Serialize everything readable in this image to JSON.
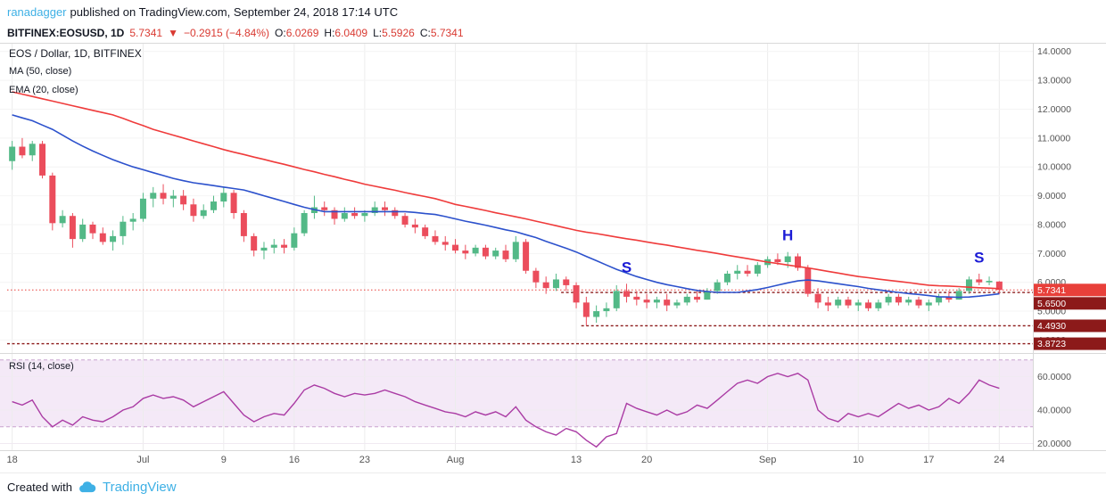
{
  "attribution": {
    "username": "ranadagger",
    "text": "published on TradingView.com, September 24, 2018 17:14 UTC"
  },
  "symbol_bar": {
    "symbol": "BITFINEX:EOSUSD, 1D",
    "last": "5.7341",
    "arrow": "▼",
    "change": "−0.2915 (−4.84%)",
    "o_label": "O:",
    "o": "6.0269",
    "h_label": "H:",
    "h": "6.0409",
    "l_label": "L:",
    "l": "5.5926",
    "c_label": "C:",
    "c": "5.7341"
  },
  "legend": {
    "title": "EOS / Dollar, 1D, BITFINEX",
    "ma_label": "MA (50, close)",
    "ema_label": "EMA (20, close)"
  },
  "rsi_title": "RSI (14, close)",
  "footer": {
    "created_with": "Created with",
    "brand": "TradingView"
  },
  "colors": {
    "link_blue": "#3eb0e5",
    "value_red": "#d93a32",
    "up": "#53b987",
    "down": "#eb4d5c",
    "ma50": "#ef3b3b",
    "ema20": "#2c51cc",
    "rsi": "#aa3ba4",
    "marker_blue": "#1b1bd6",
    "alert_dark_red": "#8c1a1a",
    "last_price_red": "#e8403a"
  },
  "chart_data": [
    {
      "type": "candlestick",
      "pane": "price",
      "title": "EOS / Dollar, 1D, BITFINEX",
      "up_color": "#53b987",
      "down_color": "#eb4d5c",
      "marker_color": "#1b1bd6",
      "ylim": [
        3.55,
        14.3
      ],
      "y_ticks": [
        14,
        13,
        12,
        11,
        10,
        9,
        8,
        7,
        6,
        5,
        4
      ],
      "x_ticks": [
        {
          "i": 0,
          "label": "18"
        },
        {
          "i": 13,
          "label": "Jul"
        },
        {
          "i": 21,
          "label": "9"
        },
        {
          "i": 28,
          "label": "16"
        },
        {
          "i": 35,
          "label": "23"
        },
        {
          "i": 44,
          "label": "Aug"
        },
        {
          "i": 56,
          "label": "13"
        },
        {
          "i": 63,
          "label": "20"
        },
        {
          "i": 75,
          "label": "Sep"
        },
        {
          "i": 84,
          "label": "10"
        },
        {
          "i": 91,
          "label": "17"
        },
        {
          "i": 98,
          "label": "24"
        }
      ],
      "candles": [
        [
          10.2,
          10.9,
          9.9,
          10.7
        ],
        [
          10.7,
          11.0,
          10.3,
          10.4
        ],
        [
          10.4,
          10.9,
          10.2,
          10.8
        ],
        [
          10.8,
          10.9,
          9.6,
          9.7
        ],
        [
          9.7,
          9.8,
          7.8,
          8.05
        ],
        [
          8.05,
          8.5,
          7.9,
          8.3
        ],
        [
          8.3,
          8.4,
          7.2,
          7.5
        ],
        [
          7.5,
          8.2,
          7.4,
          8.0
        ],
        [
          8.0,
          8.1,
          7.5,
          7.7
        ],
        [
          7.7,
          7.9,
          7.3,
          7.4
        ],
        [
          7.4,
          7.8,
          7.1,
          7.6
        ],
        [
          7.6,
          8.3,
          7.3,
          8.1
        ],
        [
          8.1,
          8.4,
          7.8,
          8.2
        ],
        [
          8.2,
          9.1,
          8.1,
          8.9
        ],
        [
          8.9,
          9.3,
          8.6,
          9.1
        ],
        [
          9.1,
          9.4,
          8.7,
          8.9
        ],
        [
          8.9,
          9.2,
          8.6,
          9.0
        ],
        [
          9.0,
          9.2,
          8.5,
          8.7
        ],
        [
          8.7,
          8.9,
          8.1,
          8.3
        ],
        [
          8.3,
          8.7,
          8.2,
          8.5
        ],
        [
          8.5,
          9.0,
          8.4,
          8.8
        ],
        [
          8.8,
          9.3,
          8.6,
          9.1
        ],
        [
          9.1,
          9.2,
          8.2,
          8.4
        ],
        [
          8.4,
          8.5,
          7.4,
          7.6
        ],
        [
          7.6,
          7.7,
          6.9,
          7.1
        ],
        [
          7.1,
          7.4,
          6.8,
          7.2
        ],
        [
          7.2,
          7.5,
          7.0,
          7.3
        ],
        [
          7.3,
          7.5,
          7.0,
          7.2
        ],
        [
          7.2,
          7.9,
          7.1,
          7.7
        ],
        [
          7.7,
          8.5,
          7.6,
          8.4
        ],
        [
          8.4,
          9.0,
          8.2,
          8.6
        ],
        [
          8.6,
          8.8,
          8.3,
          8.5
        ],
        [
          8.5,
          8.6,
          8.0,
          8.2
        ],
        [
          8.2,
          8.6,
          8.1,
          8.4
        ],
        [
          8.4,
          8.6,
          8.2,
          8.3
        ],
        [
          8.3,
          8.5,
          8.1,
          8.4
        ],
        [
          8.4,
          8.8,
          8.3,
          8.6
        ],
        [
          8.6,
          8.8,
          8.3,
          8.5
        ],
        [
          8.5,
          8.6,
          8.2,
          8.3
        ],
        [
          8.3,
          8.4,
          7.9,
          8.0
        ],
        [
          8.0,
          8.2,
          7.7,
          7.9
        ],
        [
          7.9,
          8.0,
          7.5,
          7.6
        ],
        [
          7.6,
          7.8,
          7.3,
          7.4
        ],
        [
          7.4,
          7.6,
          7.1,
          7.3
        ],
        [
          7.3,
          7.5,
          7.0,
          7.1
        ],
        [
          7.1,
          7.3,
          6.8,
          7.0
        ],
        [
          7.0,
          7.3,
          6.9,
          7.2
        ],
        [
          7.2,
          7.3,
          6.8,
          6.9
        ],
        [
          6.9,
          7.2,
          6.8,
          7.1
        ],
        [
          7.1,
          7.3,
          6.7,
          6.8
        ],
        [
          6.8,
          7.6,
          6.7,
          7.4
        ],
        [
          7.4,
          7.5,
          6.3,
          6.4
        ],
        [
          6.4,
          6.5,
          5.8,
          6.0
        ],
        [
          6.0,
          6.2,
          5.6,
          5.8
        ],
        [
          5.8,
          6.3,
          5.7,
          6.1
        ],
        [
          6.1,
          6.2,
          5.7,
          5.9
        ],
        [
          5.9,
          6.0,
          5.1,
          5.3
        ],
        [
          5.3,
          5.5,
          4.5,
          4.8
        ],
        [
          4.8,
          5.2,
          4.6,
          5.0
        ],
        [
          5.0,
          5.3,
          4.8,
          5.1
        ],
        [
          5.1,
          5.9,
          5.0,
          5.7
        ],
        [
          5.7,
          5.95,
          5.3,
          5.5
        ],
        [
          5.5,
          5.7,
          5.2,
          5.4
        ],
        [
          5.4,
          5.6,
          5.1,
          5.3
        ],
        [
          5.3,
          5.5,
          5.1,
          5.4
        ],
        [
          5.4,
          5.6,
          5.0,
          5.2
        ],
        [
          5.2,
          5.4,
          5.1,
          5.3
        ],
        [
          5.3,
          5.6,
          5.2,
          5.5
        ],
        [
          5.5,
          5.7,
          5.3,
          5.4
        ],
        [
          5.4,
          5.8,
          5.4,
          5.7
        ],
        [
          5.7,
          6.1,
          5.6,
          6.0
        ],
        [
          6.0,
          6.4,
          5.9,
          6.3
        ],
        [
          6.3,
          6.6,
          6.1,
          6.4
        ],
        [
          6.4,
          6.6,
          6.2,
          6.3
        ],
        [
          6.3,
          6.7,
          6.2,
          6.6
        ],
        [
          6.6,
          6.9,
          6.5,
          6.8
        ],
        [
          6.8,
          7.0,
          6.6,
          6.7
        ],
        [
          6.7,
          7.05,
          6.5,
          6.9
        ],
        [
          6.9,
          7.0,
          6.4,
          6.5
        ],
        [
          6.5,
          6.6,
          5.5,
          5.6
        ],
        [
          5.6,
          5.8,
          5.1,
          5.3
        ],
        [
          5.3,
          5.5,
          5.0,
          5.2
        ],
        [
          5.2,
          5.5,
          5.1,
          5.4
        ],
        [
          5.4,
          5.5,
          5.1,
          5.2
        ],
        [
          5.2,
          5.4,
          5.0,
          5.3
        ],
        [
          5.3,
          5.4,
          5.0,
          5.1
        ],
        [
          5.1,
          5.4,
          5.0,
          5.3
        ],
        [
          5.3,
          5.6,
          5.2,
          5.5
        ],
        [
          5.5,
          5.6,
          5.2,
          5.3
        ],
        [
          5.3,
          5.5,
          5.2,
          5.4
        ],
        [
          5.4,
          5.5,
          5.1,
          5.2
        ],
        [
          5.2,
          5.4,
          5.0,
          5.3
        ],
        [
          5.3,
          5.6,
          5.2,
          5.5
        ],
        [
          5.5,
          5.7,
          5.3,
          5.4
        ],
        [
          5.4,
          5.8,
          5.4,
          5.7
        ],
        [
          5.7,
          6.2,
          5.6,
          6.1
        ],
        [
          6.1,
          6.3,
          5.9,
          6.0
        ],
        [
          6.0,
          6.2,
          5.9,
          6.05
        ],
        [
          6.0269,
          6.0409,
          5.5926,
          5.7341
        ]
      ],
      "overlays": [
        {
          "name": "MA (50, close)",
          "color": "#ef3b3b",
          "values": [
            12.6,
            12.52,
            12.44,
            12.36,
            12.28,
            12.2,
            12.12,
            12.04,
            11.96,
            11.88,
            11.8,
            11.68,
            11.55,
            11.43,
            11.3,
            11.2,
            11.1,
            11.0,
            10.9,
            10.8,
            10.7,
            10.6,
            10.51,
            10.43,
            10.34,
            10.26,
            10.17,
            10.09,
            10.0,
            9.91,
            9.83,
            9.74,
            9.66,
            9.57,
            9.49,
            9.4,
            9.33,
            9.26,
            9.19,
            9.11,
            9.04,
            8.97,
            8.9,
            8.8,
            8.7,
            8.63,
            8.56,
            8.49,
            8.41,
            8.34,
            8.27,
            8.2,
            8.12,
            8.04,
            7.96,
            7.88,
            7.8,
            7.74,
            7.69,
            7.63,
            7.57,
            7.51,
            7.46,
            7.4,
            7.34,
            7.29,
            7.23,
            7.17,
            7.11,
            7.06,
            7.0,
            6.94,
            6.88,
            6.82,
            6.76,
            6.7,
            6.65,
            6.6,
            6.55,
            6.5,
            6.44,
            6.38,
            6.32,
            6.26,
            6.2,
            6.16,
            6.11,
            6.07,
            6.03,
            5.99,
            5.94,
            5.9,
            5.88,
            5.87,
            5.85,
            5.83,
            5.81,
            5.8,
            5.78
          ]
        },
        {
          "name": "EMA (20, close)",
          "color": "#2c51cc",
          "values": [
            11.8,
            11.7,
            11.6,
            11.45,
            11.3,
            11.1,
            10.9,
            10.72,
            10.55,
            10.4,
            10.25,
            10.12,
            10.0,
            9.9,
            9.8,
            9.7,
            9.6,
            9.52,
            9.45,
            9.4,
            9.35,
            9.3,
            9.25,
            9.2,
            9.1,
            9.0,
            8.9,
            8.8,
            8.7,
            8.6,
            8.52,
            8.45,
            8.45,
            8.45,
            8.45,
            8.45,
            8.45,
            8.45,
            8.45,
            8.45,
            8.42,
            8.38,
            8.35,
            8.28,
            8.2,
            8.12,
            8.05,
            7.98,
            7.9,
            7.82,
            7.75,
            7.65,
            7.55,
            7.42,
            7.3,
            7.18,
            7.05,
            6.9,
            6.75,
            6.6,
            6.45,
            6.32,
            6.2,
            6.1,
            6.0,
            5.92,
            5.85,
            5.78,
            5.72,
            5.68,
            5.65,
            5.65,
            5.65,
            5.7,
            5.75,
            5.82,
            5.9,
            5.98,
            6.05,
            6.08,
            6.05,
            6.0,
            5.95,
            5.9,
            5.85,
            5.79,
            5.74,
            5.69,
            5.65,
            5.61,
            5.58,
            5.54,
            5.5,
            5.49,
            5.48,
            5.49,
            5.52,
            5.56,
            5.6
          ]
        }
      ],
      "price_lines": [
        {
          "value": 5.7341,
          "label": "5.7341",
          "from": 0,
          "line_color": "#e8403a",
          "badge_color": "#e8403a",
          "width": 1,
          "dash": "1.5,2.5"
        },
        {
          "value": 5.65,
          "label": "5.6500",
          "from": 55,
          "line_color": "#8c1a1a",
          "badge_color": "#8c1a1a",
          "width": 1.4,
          "dash": "3,2.5"
        },
        {
          "value": 4.493,
          "label": "4.4930",
          "from": 57,
          "line_color": "#8c1a1a",
          "badge_color": "#8c1a1a",
          "width": 1.4,
          "dash": "3,2.5"
        },
        {
          "value": 3.8723,
          "label": "3.8723",
          "from": 0,
          "line_color": "#8c1a1a",
          "badge_color": "#8c1a1a",
          "width": 1.4,
          "dash": "3,2.5"
        }
      ],
      "markers": [
        {
          "i": 61,
          "price": 6.35,
          "label": "S"
        },
        {
          "i": 77,
          "price": 7.45,
          "label": "H"
        },
        {
          "i": 96,
          "price": 6.68,
          "label": "S"
        }
      ]
    },
    {
      "type": "line",
      "pane": "rsi",
      "name": "RSI (14, close)",
      "color": "#aa3ba4",
      "ylim": [
        16,
        72
      ],
      "y_ticks": [
        60,
        40,
        20
      ],
      "bands": {
        "upper": 70,
        "lower": 30,
        "fill": "#f4e9f7",
        "line_color": "#c9a3cf"
      },
      "values": [
        45,
        43,
        46,
        36,
        30,
        34,
        31,
        36,
        34,
        33,
        36,
        40,
        42,
        47,
        49,
        47,
        48,
        46,
        42,
        45,
        48,
        51,
        44,
        37,
        33,
        36,
        38,
        37,
        44,
        52,
        55,
        53,
        50,
        48,
        50,
        49,
        50,
        52,
        50,
        48,
        45,
        43,
        41,
        39,
        38,
        36,
        39,
        37,
        39,
        36,
        42,
        34,
        30,
        27,
        25,
        29,
        27,
        22,
        18,
        24,
        26,
        44,
        41,
        39,
        37,
        40,
        37,
        39,
        43,
        41,
        46,
        51,
        56,
        58,
        56,
        60,
        62,
        60,
        62,
        58,
        40,
        35,
        33,
        38,
        36,
        38,
        36,
        40,
        44,
        41,
        43,
        40,
        42,
        47,
        44,
        50,
        58,
        55,
        53
      ]
    }
  ]
}
